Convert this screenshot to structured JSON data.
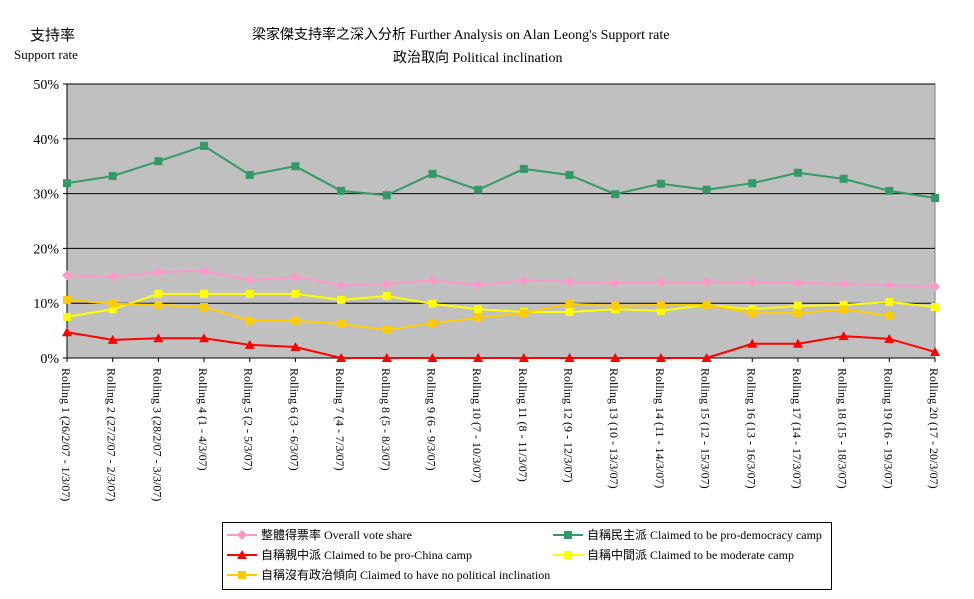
{
  "chart_data": {
    "type": "line",
    "title": "梁家傑支持率之深入分析 Further Analysis on Alan Leong's Support rate",
    "subtitle": "政治取向 Political inclination",
    "ylabel_zh": "支持率",
    "ylabel": "Support rate",
    "ylim": [
      0,
      50
    ],
    "yticks": [
      "0%",
      "10%",
      "20%",
      "30%",
      "40%",
      "50%"
    ],
    "grid": true,
    "legend_placement": "bottom",
    "categories": [
      "Rolling 1 (26/2/07 - 1/3/07)",
      "Rolling 2 (27/2/07 - 2/3/07)",
      "Rolling 3 (28/2/07 - 3/3/07)",
      "Rolling 4 (1 - 4/3/07)",
      "Rolling 5 (2 - 5/3/07)",
      "Rolling 6 (3 - 6/3/07)",
      "Rolling 7 (4 - 7/3/07)",
      "Rolling 8 (5 - 8/3/07)",
      "Rolling 9 (6 - 9/3/07)",
      "Rolling 10 (7 - 10/3/07)",
      "Rolling 11 (8 - 11/3/07)",
      "Rolling 12 (9 - 12/3/07)",
      "Rolling 13 (10 - 13/3/07)",
      "Rolling 14 (11 - 14/3/07)",
      "Rolling 15 (12 - 15/3/07)",
      "Rolling 16 (13 - 16/3/07)",
      "Rolling 17 (14 - 17/3/07)",
      "Rolling 18 (15 - 18/3/07)",
      "Rolling 19 (16 - 19/3/07)",
      "Rolling 20 (17 - 20/3/07)"
    ],
    "series": [
      {
        "name": "整體得票率 Overall vote share",
        "color": "#ff99cc",
        "marker": "diamond",
        "values": [
          15.1,
          14.8,
          15.7,
          15.9,
          14.2,
          14.8,
          13.3,
          13.5,
          14.2,
          13.3,
          14.2,
          13.9,
          13.7,
          13.9,
          13.9,
          13.9,
          13.7,
          13.5,
          13.3,
          13.0
        ]
      },
      {
        "name": "自稱民主派 Claimed to be pro-democracy camp",
        "color": "#339966",
        "marker": "square",
        "values": [
          31.9,
          33.2,
          35.9,
          38.7,
          33.4,
          35.0,
          30.5,
          29.7,
          33.6,
          30.7,
          34.5,
          33.4,
          29.9,
          31.8,
          30.7,
          31.9,
          33.8,
          32.7,
          30.5,
          29.2
        ]
      },
      {
        "name": "自稱親中派 Claimed to be pro-China camp",
        "color": "#ff0000",
        "marker": "triangle",
        "values": [
          4.7,
          3.3,
          3.6,
          3.6,
          2.4,
          2.0,
          0,
          0,
          0,
          0,
          0,
          0,
          0,
          0,
          0,
          2.6,
          2.6,
          4.0,
          3.5,
          1.1
        ]
      },
      {
        "name": "自稱中間派 Claimed to be moderate camp",
        "color": "#ffff00",
        "marker": "square",
        "values": [
          7.5,
          8.9,
          11.7,
          11.7,
          11.7,
          11.7,
          10.6,
          11.3,
          9.9,
          8.9,
          8.4,
          8.4,
          8.9,
          8.6,
          9.7,
          8.9,
          9.5,
          9.7,
          10.2,
          9.3
        ]
      },
      {
        "name": "自稱沒有政治傾向 Claimed to have no political inclination",
        "color": "#ffcc00",
        "marker": "square",
        "values": [
          10.6,
          9.9,
          9.7,
          9.3,
          6.8,
          6.8,
          6.2,
          5.1,
          6.4,
          7.3,
          8.2,
          9.9,
          9.5,
          9.7,
          9.7,
          8.2,
          8.2,
          8.9,
          7.7,
          null
        ]
      }
    ]
  }
}
